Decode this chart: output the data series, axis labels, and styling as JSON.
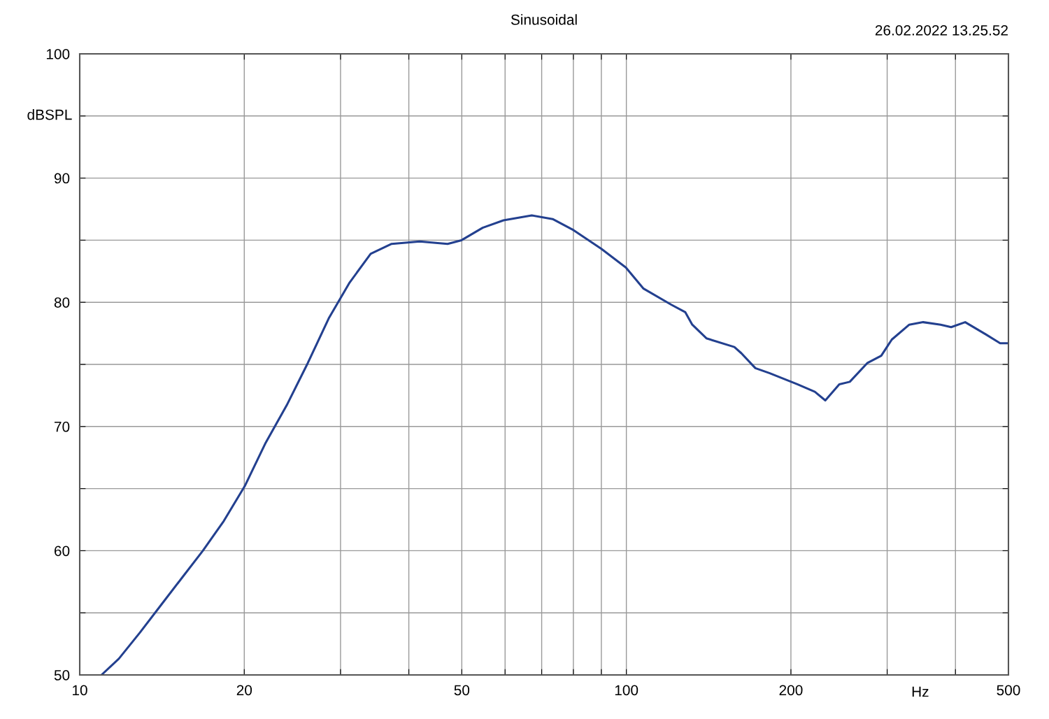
{
  "chart_data": {
    "type": "line",
    "title": "Sinusoidal",
    "xlabel": "Hz",
    "ylabel": "dBSPL",
    "annotations": [
      "26.02.2022 13.25.52"
    ],
    "log": "x",
    "grid": true,
    "legend": false,
    "marker": "none",
    "line_style": "solid",
    "xlim": [
      10,
      500
    ],
    "ylim": [
      50,
      100
    ],
    "xticks": [
      10,
      20,
      {
        "value": 30,
        "label": null
      },
      {
        "value": 40,
        "label": null
      },
      50,
      {
        "value": 60,
        "label": null
      },
      {
        "value": 70,
        "label": null
      },
      {
        "value": 80,
        "label": null
      },
      {
        "value": 90,
        "label": null
      },
      100,
      200,
      {
        "value": 300,
        "label": null
      },
      {
        "value": 400,
        "label": null
      },
      500
    ],
    "yticks": [
      50,
      {
        "value": 55,
        "label": null
      },
      60,
      {
        "value": 65,
        "label": null
      },
      70,
      {
        "value": 75,
        "label": null
      },
      80,
      {
        "value": 85,
        "label": null
      },
      90,
      {
        "value": 95,
        "label": null
      },
      100
    ],
    "series": [
      {
        "color": "#23408f",
        "x": [
          10.96,
          11.79,
          12.88,
          14.07,
          15.37,
          16.8,
          18.35,
          20.04,
          21.89,
          23.91,
          26.13,
          28.54,
          31.18,
          34.06,
          37.2,
          41.88,
          47.1,
          49.95,
          54.6,
          59.6,
          67.1,
          73.3,
          80.1,
          90.0,
          99.8,
          107.5,
          120.9,
          128.2,
          132.0,
          140.1,
          157.6,
          162.3,
          172.2,
          182.6,
          205.5,
          221.2,
          231.2,
          245.2,
          256.3,
          275.8,
          292.6,
          305.9,
          329.3,
          349.1,
          375.8,
          392.8,
          416.7,
          455.2,
          482.8,
          500
        ],
        "values": [
          50.0,
          51.3,
          53.4,
          55.6,
          57.8,
          60.0,
          62.4,
          65.2,
          68.7,
          71.7,
          75.1,
          78.7,
          81.6,
          83.9,
          84.7,
          84.9,
          84.7,
          85.0,
          86.0,
          86.6,
          87.0,
          86.7,
          85.8,
          84.3,
          82.8,
          81.1,
          79.8,
          79.2,
          78.2,
          77.1,
          76.4,
          75.9,
          74.7,
          74.3,
          73.4,
          72.8,
          72.1,
          73.4,
          73.6,
          75.1,
          75.7,
          77.0,
          78.2,
          78.4,
          78.2,
          78.0,
          78.4,
          77.4,
          76.7,
          76.7
        ]
      }
    ]
  }
}
